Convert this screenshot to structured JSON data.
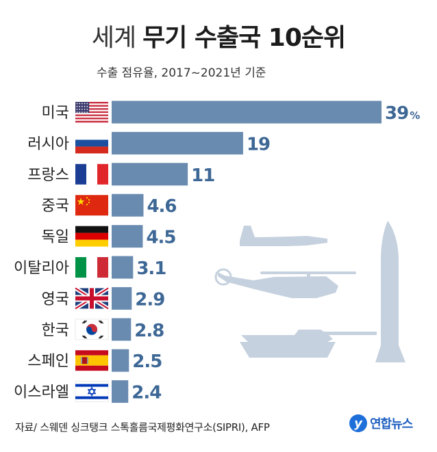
{
  "header": {
    "title_light": "세계",
    "title_bold": "무기 수출국 10순위",
    "subtitle": "수출 점유율, 2017~2021년 기준"
  },
  "chart_data": {
    "type": "bar",
    "orientation": "horizontal",
    "title": "세계 무기 수출국 10순위",
    "subtitle": "수출 점유율, 2017~2021년 기준",
    "categories": [
      "미국",
      "러시아",
      "프랑스",
      "중국",
      "독일",
      "이탈리아",
      "영국",
      "한국",
      "스페인",
      "이스라엘"
    ],
    "values": [
      39,
      19,
      11,
      4.6,
      4.5,
      3.1,
      2.9,
      2.8,
      2.5,
      2.4
    ],
    "value_labels": [
      "39",
      "19",
      "11",
      "4.6",
      "4.5",
      "3.1",
      "2.9",
      "2.8",
      "2.5",
      "2.4"
    ],
    "unit": "%",
    "flags": [
      "us-flag-icon",
      "russia-flag-icon",
      "france-flag-icon",
      "china-flag-icon",
      "germany-flag-icon",
      "italy-flag-icon",
      "uk-flag-icon",
      "korea-flag-icon",
      "spain-flag-icon",
      "israel-flag-icon"
    ],
    "bar_color": "#6a8bb0",
    "grid": false,
    "legend": "none"
  },
  "footer": {
    "source": "자료/ 스웨덴 싱크탱크 스톡홀름국제평화연구소(SIPRI), AFP",
    "logo_mark": "y",
    "logo_text": "연합뉴스"
  },
  "decor": {
    "silhouettes": [
      "fighter-jet-icon",
      "helicopter-icon",
      "tank-icon",
      "missile-icon"
    ],
    "silhouette_color": "#c5d1de"
  }
}
